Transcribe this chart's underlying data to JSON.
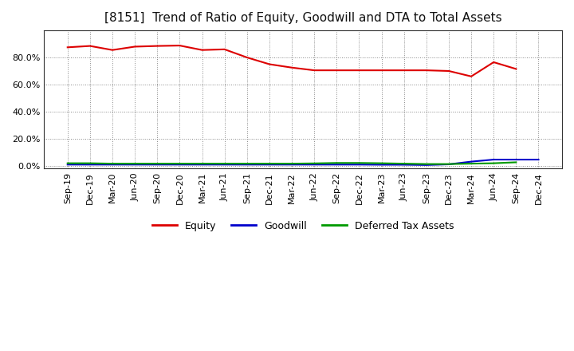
{
  "title": "[8151]  Trend of Ratio of Equity, Goodwill and DTA to Total Assets",
  "x_labels": [
    "Sep-19",
    "Dec-19",
    "Mar-20",
    "Jun-20",
    "Sep-20",
    "Dec-20",
    "Mar-21",
    "Jun-21",
    "Sep-21",
    "Dec-21",
    "Mar-22",
    "Jun-22",
    "Sep-22",
    "Dec-22",
    "Mar-23",
    "Jun-23",
    "Sep-23",
    "Dec-23",
    "Mar-24",
    "Jun-24",
    "Sep-24",
    "Dec-24"
  ],
  "equity": [
    87.5,
    88.5,
    85.5,
    88.0,
    88.5,
    88.8,
    85.5,
    86.0,
    80.0,
    75.0,
    72.5,
    70.5,
    70.5,
    70.5,
    70.5,
    70.5,
    70.5,
    70.0,
    66.0,
    76.5,
    71.5,
    null
  ],
  "goodwill": [
    0.8,
    0.8,
    0.8,
    0.8,
    0.8,
    0.8,
    0.8,
    0.8,
    0.8,
    0.8,
    0.8,
    0.8,
    0.8,
    0.8,
    0.7,
    0.7,
    0.5,
    1.0,
    3.0,
    4.5,
    4.5,
    4.5
  ],
  "dta": [
    1.8,
    1.8,
    1.5,
    1.5,
    1.5,
    1.5,
    1.5,
    1.5,
    1.5,
    1.5,
    1.5,
    1.7,
    2.0,
    2.0,
    1.8,
    1.5,
    1.2,
    1.2,
    1.5,
    1.8,
    2.5,
    null
  ],
  "equity_color": "#dd0000",
  "goodwill_color": "#0000cc",
  "dta_color": "#009900",
  "ylim": [
    -2,
    100
  ],
  "yticks": [
    0,
    20,
    40,
    60,
    80
  ],
  "ytick_labels": [
    "0.0%",
    "20.0%",
    "40.0%",
    "60.0%",
    "80.0%"
  ],
  "legend_labels": [
    "Equity",
    "Goodwill",
    "Deferred Tax Assets"
  ],
  "bg_color": "#ffffff",
  "plot_bg_color": "#ffffff",
  "grid_color_major": "#999999",
  "grid_color_minor": "#cccccc",
  "title_fontsize": 11,
  "axis_fontsize": 8
}
